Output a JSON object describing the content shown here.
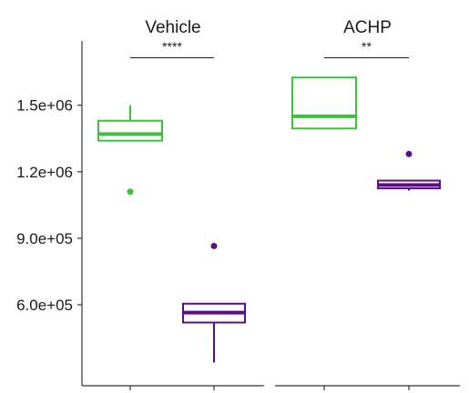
{
  "chart_data": {
    "type": "box",
    "y_ticks": [
      600000,
      900000,
      1200000,
      1500000
    ],
    "y_tick_labels": [
      "6.0e+05",
      "9.0e+05",
      "1.2e+06",
      "1.5e+06"
    ],
    "ylim": [
      235000,
      1790000
    ],
    "panels": [
      {
        "title": "Vehicle",
        "significance": "****",
        "boxes": [
          {
            "color": "#3cc23c",
            "min": 1340000,
            "q1": 1340000,
            "median": 1370000,
            "q3": 1430000,
            "max": 1500000,
            "outliers": [
              1110000
            ]
          },
          {
            "color": "#5a0f86",
            "min": 340000,
            "q1": 520000,
            "median": 565000,
            "q3": 605000,
            "max": 605000,
            "outliers": [
              865000
            ]
          }
        ]
      },
      {
        "title": "ACHP",
        "significance": "**",
        "boxes": [
          {
            "color": "#3cc23c",
            "min": 1395000,
            "q1": 1395000,
            "median": 1450000,
            "q3": 1625000,
            "max": 1625000,
            "outliers": []
          },
          {
            "color": "#5a0f86",
            "min": 1115000,
            "q1": 1125000,
            "median": 1140000,
            "q3": 1160000,
            "max": 1160000,
            "outliers": [
              1280000
            ]
          }
        ]
      }
    ],
    "legend": "none",
    "grid": false
  }
}
